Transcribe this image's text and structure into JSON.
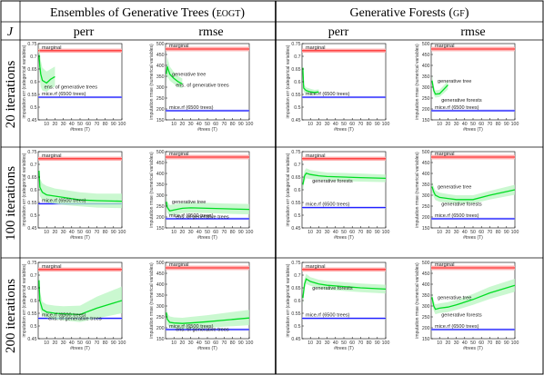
{
  "header": {
    "left_title": "Ensembles of Generative Trees",
    "left_tag": "eogt",
    "right_title": "Generative Forests",
    "right_tag": "gf",
    "j_label": "J",
    "col_perr": "perr",
    "col_rmse": "rmse"
  },
  "rows": [
    "20 iterations",
    "100 iterations",
    "200 iterations"
  ],
  "axis_labels": {
    "x": "#trees (T)",
    "perr_y": "imputation err (categorical variables)",
    "rmse_y": "imputation rmse (numerical variables)"
  },
  "colors": {
    "marginal": "#ff2020",
    "mice": "#2020ff",
    "model": "#00dd22",
    "band": "#b8f5c0"
  },
  "chart_data": [
    {
      "type": "line",
      "row": 0,
      "col": 0,
      "metric": "perr",
      "ylim": [
        0.45,
        0.75
      ],
      "xlim": [
        0,
        100
      ],
      "yticks": [
        0.45,
        0.5,
        0.55,
        0.6,
        0.65,
        0.7,
        0.75
      ],
      "xticks": [
        10,
        20,
        30,
        40,
        50,
        60,
        70,
        80,
        90,
        100
      ],
      "marginal": 0.722,
      "marginal_band": 0.008,
      "mice": 0.539,
      "mice_band": 0.004,
      "series_x": [
        1,
        2,
        3,
        5,
        10,
        15,
        20
      ],
      "series_y": [
        0.705,
        0.66,
        0.63,
        0.605,
        0.595,
        0.61,
        0.62
      ],
      "band_lo": [
        0.66,
        0.61,
        0.58,
        0.565,
        0.56,
        0.575,
        0.58
      ],
      "band_hi": [
        0.745,
        0.715,
        0.685,
        0.655,
        0.64,
        0.65,
        0.66
      ],
      "labels": {
        "marginal": "marginal",
        "mice": "mice.rf (6500 trees)",
        "model": "ens. of generative trees"
      }
    },
    {
      "type": "line",
      "row": 0,
      "col": 1,
      "metric": "rmse",
      "ylim": [
        150,
        500
      ],
      "xlim": [
        0,
        100
      ],
      "yticks": [
        150,
        200,
        250,
        300,
        350,
        400,
        450,
        500
      ],
      "xticks": [
        10,
        20,
        30,
        40,
        50,
        60,
        70,
        80,
        90,
        100
      ],
      "marginal": 475,
      "marginal_band": 10,
      "mice": 192,
      "mice_band": 5,
      "series_x": [
        1,
        2,
        5,
        10,
        15,
        20
      ],
      "series_y": [
        360,
        395,
        360,
        340,
        325,
        315
      ],
      "band_lo": [
        320,
        350,
        330,
        315,
        300,
        295
      ],
      "band_hi": [
        400,
        440,
        395,
        370,
        350,
        340
      ],
      "labels": {
        "marginal": "marginal",
        "mice": "mice.rf (6500 trees)",
        "model": "ens. of generative trees",
        "gen": "generative tree"
      }
    },
    {
      "type": "line",
      "row": 0,
      "col": 2,
      "metric": "perr",
      "ylim": [
        0.45,
        0.75
      ],
      "xlim": [
        0,
        100
      ],
      "yticks": [
        0.45,
        0.5,
        0.55,
        0.6,
        0.65,
        0.7,
        0.75
      ],
      "xticks": [
        10,
        20,
        30,
        40,
        50,
        60,
        70,
        80,
        90,
        100
      ],
      "marginal": 0.722,
      "marginal_band": 0.008,
      "mice": 0.539,
      "mice_band": 0.004,
      "series_x": [
        1,
        2,
        5,
        10,
        15,
        20
      ],
      "series_y": [
        0.655,
        0.575,
        0.565,
        0.56,
        0.558,
        0.56
      ],
      "band_lo": [
        0.635,
        0.56,
        0.552,
        0.55,
        0.55,
        0.552
      ],
      "band_hi": [
        0.675,
        0.59,
        0.578,
        0.572,
        0.568,
        0.57
      ],
      "labels": {
        "marginal": "marginal",
        "mice": "mice.rf (6500 trees)"
      }
    },
    {
      "type": "line",
      "row": 0,
      "col": 3,
      "metric": "rmse",
      "ylim": [
        150,
        500
      ],
      "xlim": [
        0,
        100
      ],
      "yticks": [
        150,
        200,
        250,
        300,
        350,
        400,
        450,
        500
      ],
      "xticks": [
        10,
        20,
        30,
        40,
        50,
        60,
        70,
        80,
        90,
        100
      ],
      "marginal": 475,
      "marginal_band": 10,
      "mice": 192,
      "mice_band": 5,
      "series_x": [
        1,
        3,
        5,
        10,
        15,
        20
      ],
      "series_y": [
        330,
        285,
        268,
        270,
        290,
        310
      ],
      "band_lo": [
        305,
        265,
        252,
        255,
        272,
        290
      ],
      "band_hi": [
        355,
        305,
        285,
        288,
        308,
        330
      ],
      "labels": {
        "marginal": "marginal",
        "mice": "mice.rf (6500 trees)",
        "model": "generative forests",
        "gen": "generative tree"
      }
    },
    {
      "type": "line",
      "row": 1,
      "col": 0,
      "metric": "perr",
      "ylim": [
        0.45,
        0.75
      ],
      "xlim": [
        0,
        100
      ],
      "yticks": [
        0.45,
        0.5,
        0.55,
        0.6,
        0.65,
        0.7,
        0.75
      ],
      "xticks": [
        10,
        20,
        30,
        40,
        50,
        60,
        70,
        80,
        90,
        100
      ],
      "marginal": 0.722,
      "marginal_band": 0.008,
      "mice": 0.545,
      "mice_band": 0.004,
      "series_x": [
        1,
        2,
        5,
        10,
        20,
        30,
        50,
        70,
        100
      ],
      "series_y": [
        0.675,
        0.61,
        0.59,
        0.58,
        0.575,
        0.57,
        0.56,
        0.557,
        0.555
      ],
      "band_lo": [
        0.64,
        0.575,
        0.56,
        0.55,
        0.545,
        0.54,
        0.535,
        0.53,
        0.528
      ],
      "band_hi": [
        0.71,
        0.645,
        0.625,
        0.615,
        0.605,
        0.6,
        0.59,
        0.585,
        0.585
      ],
      "labels": {
        "marginal": "marginal",
        "mice": "mice.rf (6500 trees)"
      }
    },
    {
      "type": "line",
      "row": 1,
      "col": 1,
      "metric": "rmse",
      "ylim": [
        150,
        500
      ],
      "xlim": [
        0,
        100
      ],
      "yticks": [
        150,
        200,
        250,
        300,
        350,
        400,
        450,
        500
      ],
      "xticks": [
        10,
        20,
        30,
        40,
        50,
        60,
        70,
        80,
        90,
        100
      ],
      "marginal": 475,
      "marginal_band": 10,
      "mice": 192,
      "mice_band": 5,
      "series_x": [
        1,
        2,
        5,
        10,
        20,
        30,
        50,
        70,
        100
      ],
      "series_y": [
        270,
        245,
        228,
        232,
        240,
        242,
        240,
        238,
        235
      ],
      "band_lo": [
        245,
        222,
        205,
        210,
        218,
        220,
        218,
        215,
        212
      ],
      "band_hi": [
        300,
        272,
        255,
        258,
        265,
        268,
        265,
        262,
        260
      ],
      "labels": {
        "marginal": "marginal",
        "mice": "mice.rf (6500 trees)",
        "model": "ens. of generative trees",
        "gen": "generative tree"
      }
    },
    {
      "type": "line",
      "row": 1,
      "col": 2,
      "metric": "perr",
      "ylim": [
        0.45,
        0.75
      ],
      "xlim": [
        0,
        100
      ],
      "yticks": [
        0.45,
        0.5,
        0.55,
        0.6,
        0.65,
        0.7,
        0.75
      ],
      "xticks": [
        10,
        20,
        30,
        40,
        50,
        60,
        70,
        80,
        90,
        100
      ],
      "marginal": 0.722,
      "marginal_band": 0.008,
      "mice": 0.53,
      "mice_band": 0.004,
      "series_x": [
        1,
        3,
        5,
        10,
        20,
        30,
        50,
        70,
        100
      ],
      "series_y": [
        0.62,
        0.655,
        0.665,
        0.66,
        0.655,
        0.652,
        0.65,
        0.648,
        0.645
      ],
      "band_lo": [
        0.595,
        0.635,
        0.645,
        0.642,
        0.638,
        0.636,
        0.634,
        0.632,
        0.63
      ],
      "band_hi": [
        0.645,
        0.675,
        0.685,
        0.678,
        0.672,
        0.668,
        0.666,
        0.664,
        0.66
      ],
      "labels": {
        "marginal": "marginal",
        "mice": "mice.rf (6500 trees)",
        "model": "generative forests"
      }
    },
    {
      "type": "line",
      "row": 1,
      "col": 3,
      "metric": "rmse",
      "ylim": [
        150,
        500
      ],
      "xlim": [
        0,
        100
      ],
      "yticks": [
        150,
        200,
        250,
        300,
        350,
        400,
        450,
        500
      ],
      "xticks": [
        10,
        20,
        30,
        40,
        50,
        60,
        70,
        80,
        90,
        100
      ],
      "marginal": 475,
      "marginal_band": 10,
      "mice": 192,
      "mice_band": 5,
      "series_x": [
        1,
        3,
        5,
        10,
        20,
        30,
        50,
        70,
        100
      ],
      "series_y": [
        340,
        315,
        300,
        290,
        285,
        280,
        280,
        300,
        325
      ],
      "band_lo": [
        315,
        292,
        278,
        270,
        265,
        262,
        262,
        280,
        302
      ],
      "band_hi": [
        365,
        338,
        322,
        312,
        305,
        300,
        300,
        320,
        348
      ],
      "labels": {
        "marginal": "marginal",
        "mice": "mice.rf (6500 trees)",
        "model": "generative forests",
        "gen": "generative tree"
      }
    },
    {
      "type": "line",
      "row": 2,
      "col": 0,
      "metric": "perr",
      "ylim": [
        0.45,
        0.75
      ],
      "xlim": [
        0,
        100
      ],
      "yticks": [
        0.45,
        0.5,
        0.55,
        0.6,
        0.65,
        0.7,
        0.75
      ],
      "xticks": [
        10,
        20,
        30,
        40,
        50,
        60,
        70,
        80,
        90,
        100
      ],
      "marginal": 0.722,
      "marginal_band": 0.008,
      "mice": 0.53,
      "mice_band": 0.004,
      "series_x": [
        1,
        2,
        5,
        10,
        20,
        30,
        50,
        70,
        100
      ],
      "series_y": [
        0.68,
        0.6,
        0.565,
        0.555,
        0.55,
        0.548,
        0.545,
        0.57,
        0.6
      ],
      "band_lo": [
        0.64,
        0.57,
        0.54,
        0.532,
        0.525,
        0.522,
        0.515,
        0.53,
        0.55
      ],
      "band_hi": [
        0.72,
        0.635,
        0.595,
        0.585,
        0.58,
        0.578,
        0.58,
        0.615,
        0.655
      ],
      "labels": {
        "marginal": "marginal",
        "mice": "mice.rf (6500 trees)",
        "model": "ens. of generative trees"
      }
    },
    {
      "type": "line",
      "row": 2,
      "col": 1,
      "metric": "rmse",
      "ylim": [
        150,
        500
      ],
      "xlim": [
        0,
        100
      ],
      "yticks": [
        150,
        200,
        250,
        300,
        350,
        400,
        450,
        500
      ],
      "xticks": [
        10,
        20,
        30,
        40,
        50,
        60,
        70,
        80,
        90,
        100
      ],
      "marginal": 475,
      "marginal_band": 10,
      "mice": 192,
      "mice_band": 5,
      "series_x": [
        1,
        2,
        5,
        10,
        20,
        30,
        50,
        70,
        100
      ],
      "series_y": [
        270,
        240,
        225,
        222,
        220,
        222,
        228,
        235,
        245
      ],
      "band_lo": [
        245,
        215,
        200,
        198,
        196,
        196,
        200,
        205,
        212
      ],
      "band_hi": [
        300,
        268,
        252,
        248,
        246,
        250,
        258,
        268,
        282
      ],
      "labels": {
        "marginal": "marginal",
        "mice": "mice.rf (6500 trees)",
        "model": "ens. of generative trees"
      }
    },
    {
      "type": "line",
      "row": 2,
      "col": 2,
      "metric": "perr",
      "ylim": [
        0.45,
        0.75
      ],
      "xlim": [
        0,
        100
      ],
      "yticks": [
        0.45,
        0.5,
        0.55,
        0.6,
        0.65,
        0.7,
        0.75
      ],
      "xticks": [
        10,
        20,
        30,
        40,
        50,
        60,
        70,
        80,
        90,
        100
      ],
      "marginal": 0.722,
      "marginal_band": 0.008,
      "mice": 0.53,
      "mice_band": 0.004,
      "series_x": [
        1,
        3,
        5,
        10,
        20,
        30,
        50,
        70,
        100
      ],
      "series_y": [
        0.61,
        0.665,
        0.685,
        0.675,
        0.665,
        0.66,
        0.655,
        0.65,
        0.645
      ],
      "band_lo": [
        0.585,
        0.645,
        0.665,
        0.658,
        0.648,
        0.643,
        0.638,
        0.633,
        0.628
      ],
      "band_hi": [
        0.635,
        0.685,
        0.705,
        0.692,
        0.682,
        0.677,
        0.672,
        0.667,
        0.662
      ],
      "labels": {
        "marginal": "marginal",
        "mice": "mice.rf (6500 trees)",
        "model": "generative forests"
      }
    },
    {
      "type": "line",
      "row": 2,
      "col": 3,
      "metric": "rmse",
      "ylim": [
        150,
        500
      ],
      "xlim": [
        0,
        100
      ],
      "yticks": [
        150,
        200,
        250,
        300,
        350,
        400,
        450,
        500
      ],
      "xticks": [
        10,
        20,
        30,
        40,
        50,
        60,
        70,
        80,
        90,
        100
      ],
      "marginal": 475,
      "marginal_band": 10,
      "mice": 192,
      "mice_band": 5,
      "series_x": [
        1,
        3,
        5,
        10,
        20,
        30,
        50,
        70,
        100
      ],
      "series_y": [
        340,
        300,
        285,
        290,
        295,
        305,
        330,
        360,
        395
      ],
      "band_lo": [
        315,
        278,
        262,
        268,
        272,
        282,
        305,
        332,
        365
      ],
      "band_hi": [
        365,
        322,
        308,
        312,
        318,
        328,
        355,
        388,
        425
      ],
      "labels": {
        "marginal": "marginal",
        "mice": "mice.rf (6500 trees)",
        "model": "generative forests",
        "gen": "generative tree"
      }
    }
  ]
}
